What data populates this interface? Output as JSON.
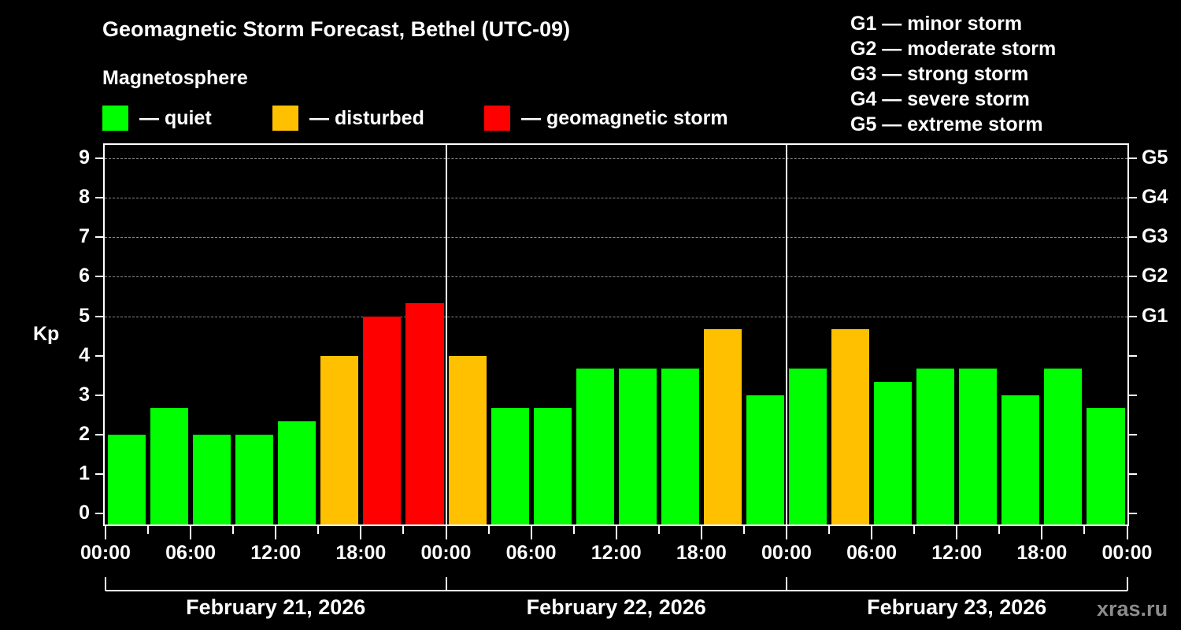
{
  "header": {
    "title": "Geomagnetic Storm Forecast, Bethel (UTC-09)",
    "subtitle": "Magnetosphere"
  },
  "legend": [
    {
      "label": "— quiet",
      "color": "#00ff00"
    },
    {
      "label": "— disturbed",
      "color": "#ffc000"
    },
    {
      "label": "— geomagnetic storm",
      "color": "#ff0000"
    }
  ],
  "g_legend": [
    "G1 — minor storm",
    "G2 — moderate storm",
    "G3 — strong storm",
    "G4 — severe storm",
    "G5 — extreme storm"
  ],
  "axes": {
    "ylabel": "Kp",
    "y_ticks": [
      "0",
      "1",
      "2",
      "3",
      "4",
      "5",
      "6",
      "7",
      "8",
      "9"
    ],
    "g_ticks": [
      {
        "kp": 5,
        "label": "G1"
      },
      {
        "kp": 6,
        "label": "G2"
      },
      {
        "kp": 7,
        "label": "G3"
      },
      {
        "kp": 8,
        "label": "G4"
      },
      {
        "kp": 9,
        "label": "G5"
      }
    ],
    "x_ticks": [
      "00:00",
      "06:00",
      "12:00",
      "18:00",
      "00:00",
      "06:00",
      "12:00",
      "18:00",
      "00:00",
      "06:00",
      "12:00",
      "18:00",
      "00:00"
    ],
    "days": [
      "February 21, 2026",
      "February 22, 2026",
      "February 23, 2026"
    ]
  },
  "watermark": "xras.ru",
  "chart_data": {
    "type": "bar",
    "title": "Geomagnetic Storm Forecast, Bethel (UTC-09)",
    "xlabel": "",
    "ylabel": "Kp",
    "ylim": [
      0,
      9
    ],
    "grid": "dashed lines at Kp 5-9",
    "secondary_y_labels": {
      "5": "G1",
      "6": "G2",
      "7": "G3",
      "8": "G4",
      "9": "G5"
    },
    "categories": [
      "Feb 21 00:00",
      "Feb 21 03:00",
      "Feb 21 06:00",
      "Feb 21 09:00",
      "Feb 21 12:00",
      "Feb 21 15:00",
      "Feb 21 18:00",
      "Feb 21 21:00",
      "Feb 22 00:00",
      "Feb 22 03:00",
      "Feb 22 06:00",
      "Feb 22 09:00",
      "Feb 22 12:00",
      "Feb 22 15:00",
      "Feb 22 18:00",
      "Feb 22 21:00",
      "Feb 23 00:00",
      "Feb 23 03:00",
      "Feb 23 06:00",
      "Feb 23 09:00",
      "Feb 23 12:00",
      "Feb 23 15:00",
      "Feb 23 18:00",
      "Feb 23 21:00"
    ],
    "values": [
      2.0,
      2.67,
      2.0,
      2.0,
      2.33,
      4.0,
      5.0,
      5.33,
      4.0,
      2.67,
      2.67,
      3.67,
      3.67,
      3.67,
      4.67,
      3.0,
      3.67,
      4.67,
      3.33,
      3.67,
      3.67,
      3.0,
      3.67,
      2.67
    ],
    "levels": [
      "quiet",
      "quiet",
      "quiet",
      "quiet",
      "quiet",
      "disturbed",
      "storm",
      "storm",
      "disturbed",
      "quiet",
      "quiet",
      "quiet",
      "quiet",
      "quiet",
      "disturbed",
      "quiet",
      "quiet",
      "disturbed",
      "quiet",
      "quiet",
      "quiet",
      "quiet",
      "quiet",
      "quiet"
    ],
    "level_colors": {
      "quiet": "#00ff00",
      "disturbed": "#ffc000",
      "storm": "#ff0000"
    },
    "legend": [
      "quiet",
      "disturbed",
      "geomagnetic storm"
    ],
    "legend_position": "top"
  }
}
